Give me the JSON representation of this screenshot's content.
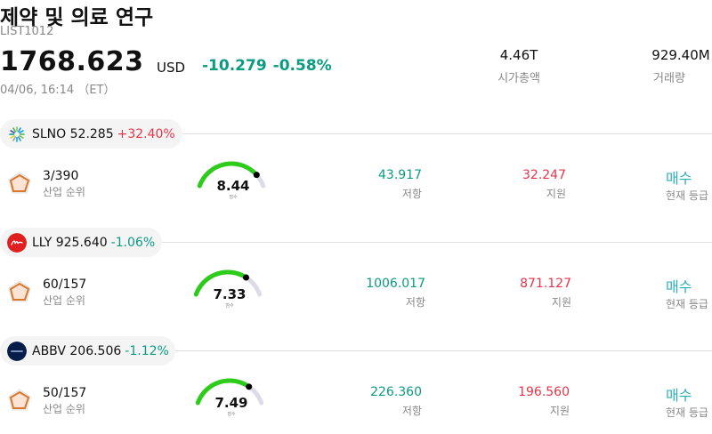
{
  "header": {
    "title": "제약 및 의료 연구",
    "code": "LIST1012",
    "price": "1768.623",
    "currency": "USD",
    "change_abs": "-10.279",
    "change_pct": "-0.58%",
    "timestamp": "04/06, 16:14 （ET）",
    "market_cap": {
      "value": "4.46T",
      "label": "시가총액"
    },
    "volume": {
      "value": "929.40M",
      "label": "거래량"
    }
  },
  "stocks": [
    {
      "ticker_price": "SLNO 52.285",
      "change_pct": "+32.40%",
      "direction": "up",
      "logo_icon": "slno-sunburst-logo-icon",
      "rank": "3/390",
      "rank_label": "산업 순위",
      "score": "8.44",
      "score_fraction": 0.844,
      "score_label": "점수",
      "resistance": "43.917",
      "resistance_label": "저항",
      "support": "32.247",
      "support_label": "지원",
      "rating": "매수",
      "rating_label": "현재 등급"
    },
    {
      "ticker_price": "LLY 925.640",
      "change_pct": "-1.06%",
      "direction": "down",
      "logo_icon": "lilly-red-logo-icon",
      "rank": "60/157",
      "rank_label": "산업 순위",
      "score": "7.33",
      "score_fraction": 0.733,
      "score_label": "점수",
      "resistance": "1006.017",
      "resistance_label": "저항",
      "support": "871.127",
      "support_label": "지원",
      "rating": "매수",
      "rating_label": "현재 등급"
    },
    {
      "ticker_price": "ABBV 206.506",
      "change_pct": "-1.12%",
      "direction": "down",
      "logo_icon": "abbvie-navy-logo-icon",
      "rank": "50/157",
      "rank_label": "산업 순위",
      "score": "7.49",
      "score_fraction": 0.749,
      "score_label": "점수",
      "resistance": "226.360",
      "resistance_label": "저항",
      "support": "196.560",
      "support_label": "지원",
      "rating": "매수",
      "rating_label": "현재 등급"
    }
  ],
  "colors": {
    "accent_green": "#0a9b82",
    "accent_red": "#e8344a",
    "rating_teal": "#2ab0b8",
    "gauge_track": "#dcdce6",
    "gauge_fill": "#2ecc1a"
  }
}
